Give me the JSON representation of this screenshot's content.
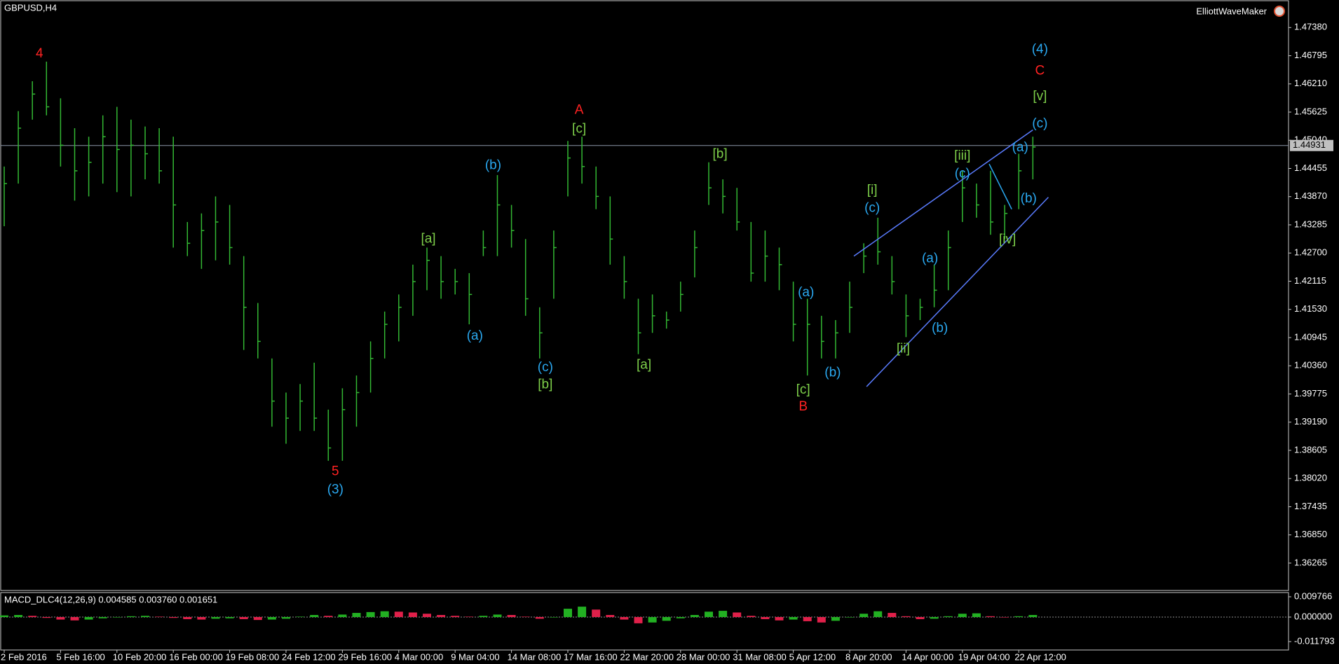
{
  "chart_data": [
    {
      "type": "ohlc",
      "title": "GBPUSD,H4",
      "indicator": "ElliottWaveMaker",
      "color": "#33b833",
      "xticks": [
        {
          "value": 0,
          "label": "2 Feb 2016"
        },
        {
          "value": 4,
          "label": "5 Feb 16:00"
        },
        {
          "value": 8,
          "label": "10 Feb 20:00"
        },
        {
          "value": 12,
          "label": "16 Feb 00:00"
        },
        {
          "value": 16,
          "label": "19 Feb 08:00"
        },
        {
          "value": 20,
          "label": "24 Feb 12:00"
        },
        {
          "value": 24,
          "label": "29 Feb 16:00"
        },
        {
          "value": 28,
          "label": "4 Mar 00:00"
        },
        {
          "value": 32,
          "label": "9 Mar 04:00"
        },
        {
          "value": 36,
          "label": "14 Mar 08:00"
        },
        {
          "value": 40,
          "label": "17 Mar 16:00"
        },
        {
          "value": 44,
          "label": "22 Mar 20:00"
        },
        {
          "value": 48,
          "label": "28 Mar 00:00"
        },
        {
          "value": 52,
          "label": "31 Mar 08:00"
        },
        {
          "value": 56,
          "label": "5 Apr 12:00"
        },
        {
          "value": 60,
          "label": "8 Apr 20:00"
        },
        {
          "value": 64,
          "label": "14 Apr 00:00"
        },
        {
          "value": 68,
          "label": "19 Apr 04:00"
        },
        {
          "value": 72,
          "label": "22 Apr 12:00"
        }
      ],
      "high": [
        1.44495,
        1.45645,
        1.46265,
        1.46672,
        1.45911,
        1.45291,
        1.45114,
        1.45557,
        1.45734,
        1.45468,
        1.45326,
        1.45291,
        1.45114,
        1.43344,
        1.43522,
        1.43875,
        1.43698,
        1.42636,
        1.41663,
        1.40512,
        1.39804,
        1.39981,
        1.40424,
        1.3945,
        1.39893,
        1.40158,
        1.40866,
        1.41485,
        1.4184,
        1.42459,
        1.42813,
        1.42636,
        1.42371,
        1.42283,
        1.43167,
        1.44318,
        1.43698,
        1.4299,
        1.41574,
        1.43167,
        1.45026,
        1.45114,
        1.44495,
        1.43875,
        1.42636,
        1.41751,
        1.4184,
        1.41485,
        1.42106,
        1.43167,
        1.44583,
        1.44229,
        1.44052,
        1.43344,
        1.43167,
        1.42813,
        1.42106,
        1.41751,
        1.41397,
        1.41308,
        1.42106,
        1.42902,
        1.43433,
        1.42636,
        1.4184,
        1.41751,
        1.42459,
        1.43167,
        1.44406,
        1.44141,
        1.44406,
        1.43698,
        1.4476,
        1.45114
      ],
      "low": [
        1.43256,
        1.44141,
        1.45468,
        1.45557,
        1.44495,
        1.43787,
        1.43875,
        1.44141,
        1.43964,
        1.43875,
        1.44229,
        1.44141,
        1.42813,
        1.42636,
        1.42371,
        1.42548,
        1.42459,
        1.40689,
        1.40512,
        1.39096,
        1.38742,
        1.39008,
        1.39008,
        1.38388,
        1.38388,
        1.39096,
        1.39804,
        1.40512,
        1.40866,
        1.41397,
        1.41928,
        1.41751,
        1.4184,
        1.4122,
        1.42636,
        1.42636,
        1.42813,
        1.41397,
        1.40512,
        1.41751,
        1.43875,
        1.44141,
        1.4361,
        1.42459,
        1.41751,
        1.40601,
        1.41043,
        1.41131,
        1.41485,
        1.42194,
        1.43698,
        1.43522,
        1.43167,
        1.42106,
        1.42106,
        1.41928,
        1.40866,
        1.40158,
        1.40512,
        1.40512,
        1.41043,
        1.42283,
        1.42459,
        1.4184,
        1.40955,
        1.41308,
        1.41574,
        1.41928,
        1.43344,
        1.43433,
        1.43079,
        1.4299,
        1.4361,
        1.44229
      ],
      "close": [
        1.44141,
        1.45291,
        1.45999,
        1.45734,
        1.44937,
        1.44406,
        1.44583,
        1.45114,
        1.44849,
        1.44937,
        1.4476,
        1.44406,
        1.43698,
        1.42902,
        1.43167,
        1.43344,
        1.42813,
        1.41574,
        1.40866,
        1.39627,
        1.39273,
        1.39627,
        1.39273,
        1.38654,
        1.3945,
        1.39804,
        1.40512,
        1.4122,
        1.41574,
        1.42106,
        1.42548,
        1.42106,
        1.42106,
        1.4184,
        1.42813,
        1.43698,
        1.43167,
        1.41751,
        1.41043,
        1.42813,
        1.44672,
        1.44495,
        1.43875,
        1.4299,
        1.42106,
        1.41043,
        1.41397,
        1.41308,
        1.4184,
        1.42813,
        1.44052,
        1.43875,
        1.43344,
        1.42283,
        1.42636,
        1.42459,
        1.4122,
        1.4122,
        1.40866,
        1.41043,
        1.41574,
        1.42636,
        1.42725,
        1.42106,
        1.41397,
        1.41574,
        1.41928,
        1.42813,
        1.44052,
        1.43698,
        1.43344,
        1.43522,
        1.44406,
        1.449
      ],
      "ylim": [
        1.35697,
        1.47893
      ],
      "yticks": [
        {
          "value": 1.4738,
          "label": "1.47380"
        },
        {
          "value": 1.46795,
          "label": "1.46795"
        },
        {
          "value": 1.4621,
          "label": "1.46210"
        },
        {
          "value": 1.45625,
          "label": "1.45625"
        },
        {
          "value": 1.4504,
          "label": "1.45040"
        },
        {
          "value": 1.44455,
          "label": "1.44455"
        },
        {
          "value": 1.4387,
          "label": "1.43870"
        },
        {
          "value": 1.43285,
          "label": "1.43285"
        },
        {
          "value": 1.427,
          "label": "1.42700"
        },
        {
          "value": 1.42115,
          "label": "1.42115"
        },
        {
          "value": 1.4153,
          "label": "1.41530"
        },
        {
          "value": 1.40945,
          "label": "1.40945"
        },
        {
          "value": 1.4036,
          "label": "1.40360"
        },
        {
          "value": 1.39775,
          "label": "1.39775"
        },
        {
          "value": 1.3919,
          "label": "1.39190"
        },
        {
          "value": 1.38605,
          "label": "1.38605"
        },
        {
          "value": 1.3802,
          "label": "1.38020"
        },
        {
          "value": 1.37435,
          "label": "1.37435"
        },
        {
          "value": 1.3685,
          "label": "1.36850"
        },
        {
          "value": 1.36265,
          "label": "1.36265"
        }
      ],
      "current_price": 1.44931,
      "annotations": [
        {
          "text": "4",
          "color": "#ff2222",
          "x": 2.5,
          "y": 1.46831
        },
        {
          "text": "5",
          "color": "#ff2222",
          "x": 23.5,
          "y": 1.38158
        },
        {
          "text": "(3)",
          "color": "#2aa8f0",
          "x": 23.5,
          "y": 1.37786
        },
        {
          "text": "(a)",
          "color": "#2aa8f0",
          "x": 33.4,
          "y": 1.40973
        },
        {
          "text": "[a]",
          "color": "#7ed04a",
          "x": 30.1,
          "y": 1.4299
        },
        {
          "text": "(b)",
          "color": "#2aa8f0",
          "x": 34.7,
          "y": 1.44513
        },
        {
          "text": "(c)",
          "color": "#2aa8f0",
          "x": 38.4,
          "y": 1.40317
        },
        {
          "text": "[b]",
          "color": "#7ed04a",
          "x": 38.4,
          "y": 1.39963
        },
        {
          "text": "A",
          "color": "#ff2222",
          "x": 40.8,
          "y": 1.45663
        },
        {
          "text": "[c]",
          "color": "#7ed04a",
          "x": 40.8,
          "y": 1.45273
        },
        {
          "text": "[a]",
          "color": "#7ed04a",
          "x": 45.4,
          "y": 1.4037
        },
        {
          "text": "[b]",
          "color": "#7ed04a",
          "x": 50.8,
          "y": 1.44743
        },
        {
          "text": "(a)",
          "color": "#2aa8f0",
          "x": 56.9,
          "y": 1.41875
        },
        {
          "text": "(b)",
          "color": "#2aa8f0",
          "x": 58.8,
          "y": 1.40211
        },
        {
          "text": "[c]",
          "color": "#7ed04a",
          "x": 56.7,
          "y": 1.39857
        },
        {
          "text": "B",
          "color": "#ff2222",
          "x": 56.7,
          "y": 1.39503
        },
        {
          "text": "[i]",
          "color": "#7ed04a",
          "x": 61.6,
          "y": 1.44
        },
        {
          "text": "(c)",
          "color": "#2aa8f0",
          "x": 61.6,
          "y": 1.43628
        },
        {
          "text": "[ii]",
          "color": "#7ed04a",
          "x": 63.8,
          "y": 1.40707
        },
        {
          "text": "(a)",
          "color": "#2aa8f0",
          "x": 65.7,
          "y": 1.42583
        },
        {
          "text": "(b)",
          "color": "#2aa8f0",
          "x": 66.4,
          "y": 1.41132
        },
        {
          "text": "[iii]",
          "color": "#7ed04a",
          "x": 68.0,
          "y": 1.44707
        },
        {
          "text": "(c)",
          "color": "#2aa8f0",
          "x": 68.0,
          "y": 1.44336
        },
        {
          "text": "[iv]",
          "color": "#7ed04a",
          "x": 71.2,
          "y": 1.42973
        },
        {
          "text": "(a)",
          "color": "#2aa8f0",
          "x": 72.1,
          "y": 1.44884
        },
        {
          "text": "(b)",
          "color": "#2aa8f0",
          "x": 72.7,
          "y": 1.43822
        },
        {
          "text": "(c)",
          "color": "#2aa8f0",
          "x": 73.5,
          "y": 1.45379
        },
        {
          "text": "[v]",
          "color": "#7ed04a",
          "x": 73.5,
          "y": 1.45945
        },
        {
          "text": "C",
          "color": "#ff2222",
          "x": 73.5,
          "y": 1.46476
        },
        {
          "text": "(4)",
          "color": "#2aa8f0",
          "x": 73.5,
          "y": 1.46919
        }
      ],
      "lines": [
        {
          "color": "#5a7cff",
          "x": [
            60.3,
            73.0
          ],
          "y": [
            1.42636,
            1.45255
          ]
        },
        {
          "color": "#5a7cff",
          "x": [
            61.2,
            74.1
          ],
          "y": [
            1.39928,
            1.43857
          ]
        },
        {
          "color": "#2aa8f0",
          "x": [
            69.9,
            71.5
          ],
          "y": [
            1.44548,
            1.4361
          ]
        }
      ]
    },
    {
      "type": "histogram",
      "title": "MACD_DLC4(12,26,9) 0.004585 0.003760 0.001651",
      "up_color": "#22b022",
      "down_color": "#e0204a",
      "values": [
        0.0008,
        0.001,
        0.0006,
        -0.0004,
        -0.0012,
        -0.0016,
        -0.0012,
        -0.0006,
        -0.0002,
        0.0004,
        0.0006,
        0.0002,
        -0.0004,
        -0.001,
        -0.0012,
        -0.0008,
        -0.0006,
        -0.001,
        -0.0014,
        -0.0012,
        -0.0008,
        0.0002,
        0.001,
        0.0006,
        0.0012,
        0.002,
        0.0024,
        0.0028,
        0.0026,
        0.0022,
        0.0016,
        0.001,
        0.0006,
        0.0002,
        0.0006,
        0.0012,
        0.001,
        0.0002,
        -0.0008,
        -0.0002,
        0.004,
        0.005,
        0.0036,
        0.001,
        -0.0012,
        -0.003,
        -0.0026,
        -0.0018,
        -0.0006,
        0.001,
        0.0026,
        0.003,
        0.0022,
        0.0006,
        -0.001,
        -0.0016,
        -0.0012,
        -0.002,
        -0.0026,
        -0.0018,
        -0.0002,
        0.0016,
        0.0028,
        0.002,
        0.0004,
        -0.001,
        -0.0008,
        0.0004,
        0.0016,
        0.0018,
        0.0004,
        -0.0002,
        0.0004,
        0.001
      ],
      "ylim": [
        -0.011793,
        0.009766
      ],
      "yticks": [
        {
          "value": 0.009766,
          "label": "0.009766"
        },
        {
          "value": 0,
          "label": "0.000000"
        },
        {
          "value": -0.011793,
          "label": "-0.011793"
        }
      ]
    }
  ]
}
